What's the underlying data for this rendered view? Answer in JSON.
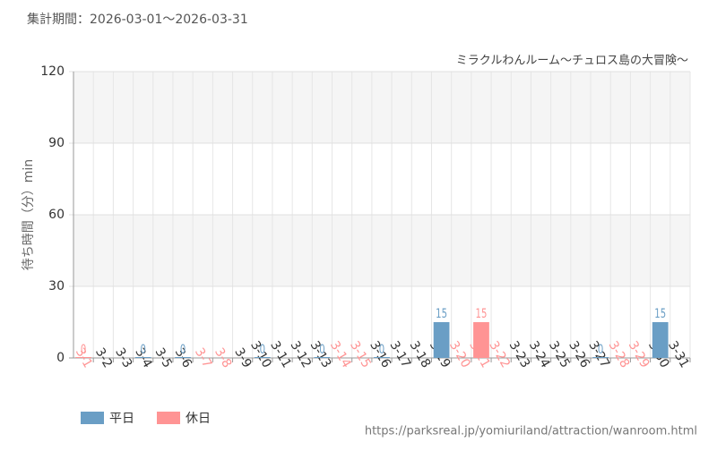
{
  "header": "集計期間：2026-03-01～2026-03-31",
  "footer": "https://parksreal.jp/yomiuriland/attraction/wanroom.html",
  "chart_data": {
    "type": "bar",
    "title": "ミラクルわんルーム～チュロス島の大冒険～",
    "y_label": "待ち時間（分）min",
    "categories": [
      "3-1",
      "3-2",
      "3-3",
      "3-4",
      "3-5",
      "3-6",
      "3-7",
      "3-8",
      "3-9",
      "3-10",
      "3-11",
      "3-12",
      "3-13",
      "3-14",
      "3-15",
      "3-16",
      "3-17",
      "3-18",
      "3-19",
      "3-20",
      "3-21",
      "3-22",
      "3-23",
      "3-24",
      "3-25",
      "3-26",
      "3-27",
      "3-28",
      "3-29",
      "3-30",
      "3-31"
    ],
    "category_colors": [
      "#ff9494",
      "#333333",
      "#333333",
      "#333333",
      "#333333",
      "#333333",
      "#ff9494",
      "#ff9494",
      "#333333",
      "#333333",
      "#333333",
      "#333333",
      "#333333",
      "#ff9494",
      "#ff9494",
      "#333333",
      "#333333",
      "#333333",
      "#333333",
      "#ff9494",
      "#ff9494",
      "#ff9494",
      "#333333",
      "#333333",
      "#333333",
      "#333333",
      "#333333",
      "#ff9494",
      "#ff9494",
      "#333333",
      "#333333"
    ],
    "series": [
      {
        "name": "平日",
        "color": "#6a9ec5",
        "values": [
          null,
          null,
          null,
          0,
          null,
          0,
          null,
          null,
          null,
          0,
          null,
          null,
          0,
          null,
          null,
          0,
          null,
          null,
          15,
          null,
          null,
          null,
          null,
          null,
          null,
          null,
          0,
          null,
          null,
          15,
          null
        ]
      },
      {
        "name": "休日",
        "color": "#ff9494",
        "values": [
          0,
          null,
          null,
          null,
          null,
          null,
          null,
          null,
          null,
          null,
          null,
          null,
          null,
          null,
          null,
          null,
          null,
          null,
          null,
          null,
          15,
          null,
          null,
          null,
          null,
          null,
          null,
          null,
          null,
          null,
          null
        ]
      }
    ],
    "ylim": [
      0,
      120
    ],
    "yticks": [
      0,
      30,
      60,
      90,
      120
    ],
    "grid": true
  }
}
